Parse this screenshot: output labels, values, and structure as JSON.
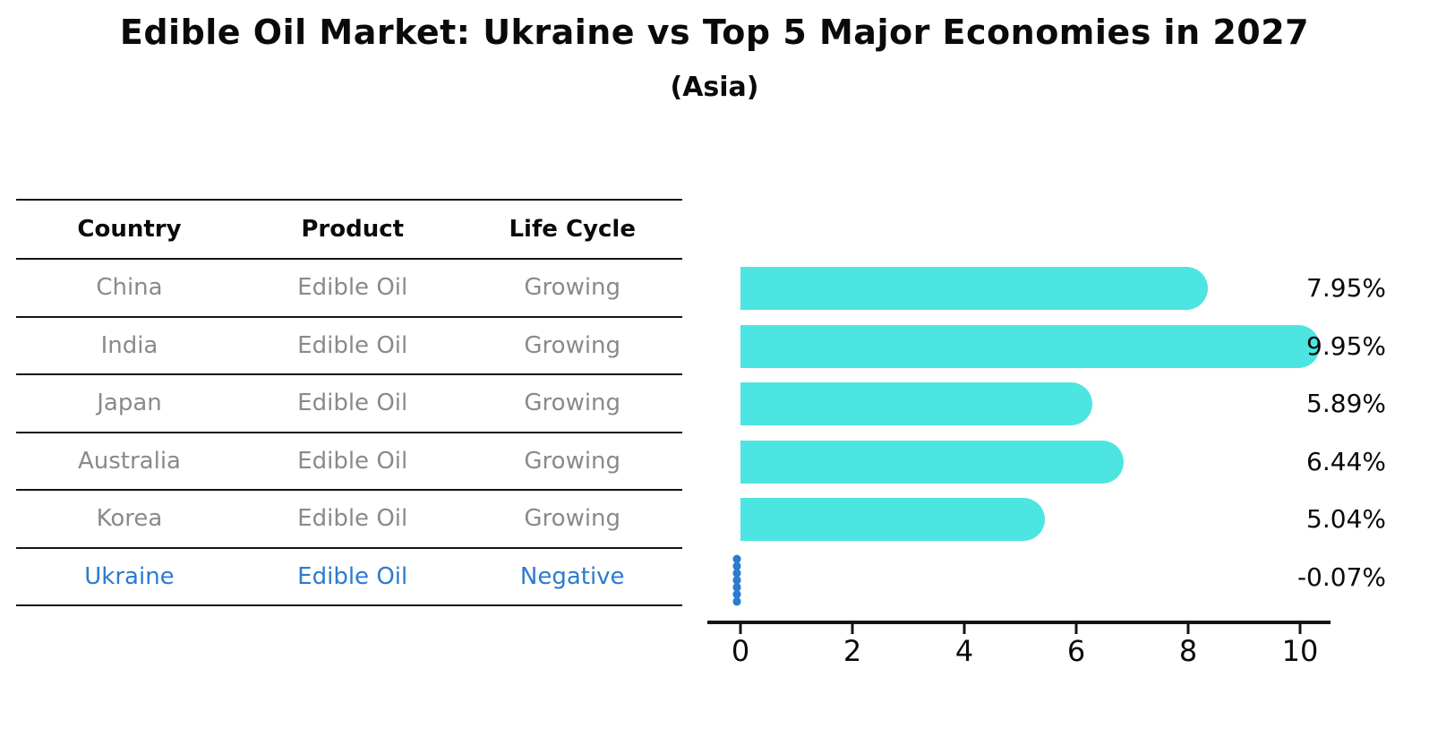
{
  "title": "Edible Oil Market: Ukraine vs Top 5 Major Economies in 2027",
  "subtitle": "(Asia)",
  "table": {
    "headers": [
      "Country",
      "Product",
      "Life Cycle"
    ],
    "rows": [
      {
        "country": "China",
        "product": "Edible Oil",
        "life_cycle": "Growing",
        "highlight": false
      },
      {
        "country": "India",
        "product": "Edible Oil",
        "life_cycle": "Growing",
        "highlight": false
      },
      {
        "country": "Japan",
        "product": "Edible Oil",
        "life_cycle": "Growing",
        "highlight": false
      },
      {
        "country": "Australia",
        "product": "Edible Oil",
        "life_cycle": "Growing",
        "highlight": false
      },
      {
        "country": "Korea",
        "product": "Edible Oil",
        "life_cycle": "Growing",
        "highlight": false
      },
      {
        "country": "Ukraine",
        "product": "Edible Oil",
        "life_cycle": "Negative",
        "highlight": true
      }
    ]
  },
  "chart_data": {
    "type": "bar",
    "orientation": "horizontal",
    "title": "Edible Oil Market: Ukraine vs Top 5 Major Economies in 2027",
    "subtitle": "(Asia)",
    "categories": [
      "China",
      "India",
      "Japan",
      "Australia",
      "Korea",
      "Ukraine"
    ],
    "values": [
      7.95,
      9.95,
      5.89,
      6.44,
      5.04,
      -0.07
    ],
    "value_labels": [
      "7.95%",
      "9.95%",
      "5.89%",
      "6.44%",
      "5.04%",
      "-0.07%"
    ],
    "x_ticks": [
      "0",
      "2",
      "4",
      "6",
      "8",
      "10"
    ],
    "x_range": [
      0,
      10
    ],
    "grid": false,
    "legend": false,
    "bar_color": "#4de5e1",
    "highlight_color": "#2b7bd0"
  },
  "colors": {
    "bar_turquoise": "#4de5e1",
    "highlight_blue": "#2b7bd0",
    "row_text_gray": "#8a8a8a",
    "text_black": "#0a0a0a",
    "background": "#ffffff"
  }
}
